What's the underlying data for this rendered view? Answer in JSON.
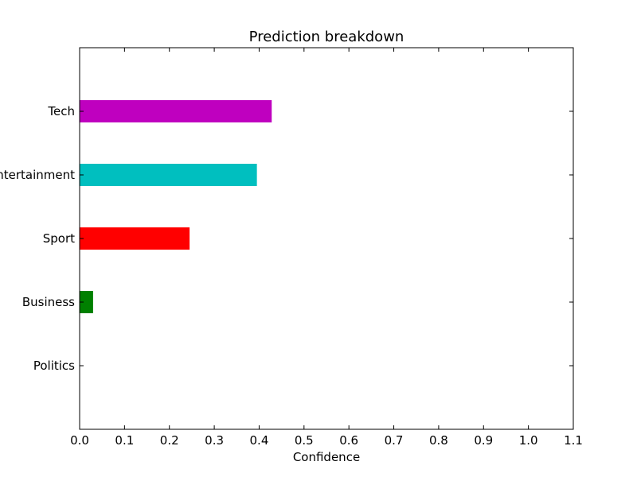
{
  "chart_data": {
    "type": "bar",
    "orientation": "horizontal",
    "title": "Prediction breakdown",
    "xlabel": "Confidence",
    "ylabel": "",
    "categories": [
      "Politics",
      "Business",
      "Sport",
      "Entertainment",
      "Tech"
    ],
    "values": [
      0.0,
      0.03,
      0.245,
      0.395,
      0.428
    ],
    "colors": [
      "#0000ff",
      "#008000",
      "#ff0000",
      "#00bfbf",
      "#bf00bf"
    ],
    "xlim": [
      0.0,
      1.1
    ],
    "ylim": [
      -1,
      5
    ],
    "xticks": [
      0.0,
      0.1,
      0.2,
      0.3,
      0.4,
      0.5,
      0.6,
      0.7,
      0.8,
      0.9,
      1.0,
      1.1
    ],
    "xtick_labels": [
      "0.0",
      "0.1",
      "0.2",
      "0.3",
      "0.4",
      "0.5",
      "0.6",
      "0.7",
      "0.8",
      "0.9",
      "1.0",
      "1.1"
    ],
    "grid": false,
    "legend": "none"
  }
}
